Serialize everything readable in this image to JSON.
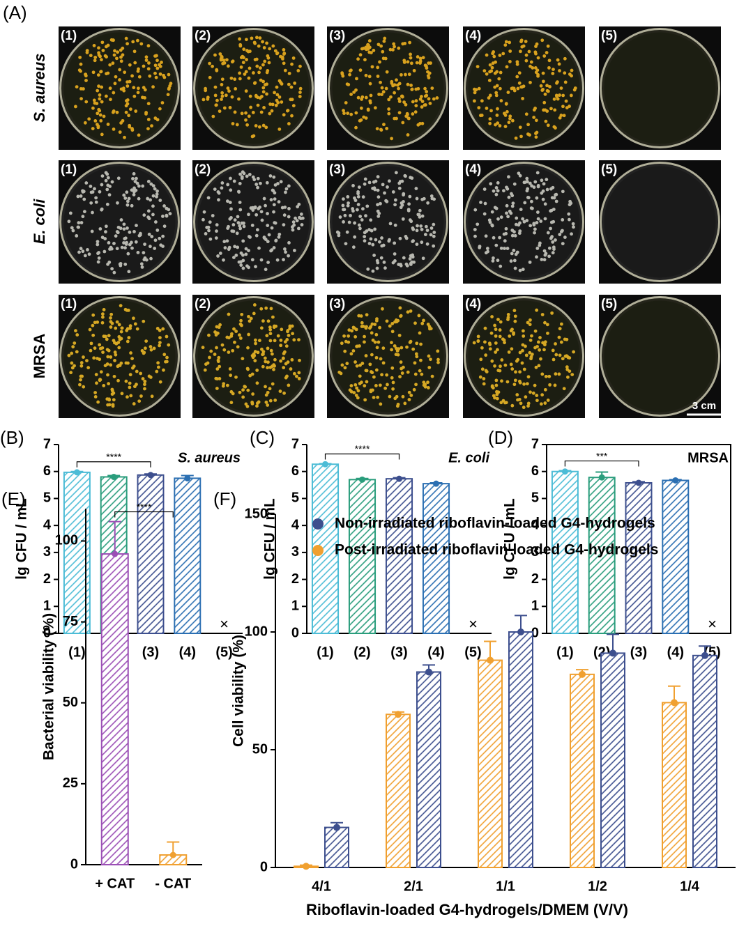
{
  "panel_a": {
    "label": "(A)",
    "scale_bar": "3 cm",
    "rows": [
      {
        "name": "S. aureus",
        "italic": true,
        "colony_color": "#d9a21e",
        "plates": [
          "(1)",
          "(2)",
          "(3)",
          "(4)",
          "(5)"
        ],
        "growth": [
          true,
          true,
          true,
          true,
          false
        ]
      },
      {
        "name": "E. coli",
        "italic": true,
        "colony_color": "#b8b8b0",
        "plates": [
          "(1)",
          "(2)",
          "(3)",
          "(4)",
          "(5)"
        ],
        "growth": [
          true,
          true,
          true,
          true,
          false
        ]
      },
      {
        "name": "MRSA",
        "italic": false,
        "colony_color": "#d6a824",
        "plates": [
          "(1)",
          "(2)",
          "(3)",
          "(4)",
          "(5)"
        ],
        "growth": [
          true,
          true,
          true,
          true,
          false
        ]
      }
    ]
  },
  "chart_data": [
    {
      "type": "bar",
      "panel_label": "(B)",
      "y_label": "lg CFU / mL",
      "species": "S. aureus",
      "species_italic": true,
      "categories": [
        "(1)",
        "(2)",
        "(3)",
        "(4)",
        "(5)"
      ],
      "values": [
        5.97,
        5.8,
        5.87,
        5.75,
        0
      ],
      "errors": [
        0.03,
        0.05,
        0.04,
        0.1,
        0
      ],
      "colors": [
        "#4cbcd6",
        "#2a9d7c",
        "#3d4f8e",
        "#2b6fb2",
        "#2b6fb2"
      ],
      "no_growth_marker": "×",
      "significance": {
        "label": "****",
        "between": [
          "(1)",
          "(3)"
        ]
      },
      "ylim": [
        0,
        7
      ],
      "yticks": [
        0,
        1,
        2,
        3,
        4,
        5,
        6,
        7
      ],
      "frame": false
    },
    {
      "type": "bar",
      "panel_label": "(C)",
      "y_label": "lg CFU / mL",
      "species": "E. coli",
      "species_italic": true,
      "categories": [
        "(1)",
        "(2)",
        "(3)",
        "(4)",
        "(5)"
      ],
      "values": [
        6.27,
        5.7,
        5.73,
        5.55,
        0
      ],
      "errors": [
        0.02,
        0.04,
        0.04,
        0.03,
        0
      ],
      "colors": [
        "#4cbcd6",
        "#2a9d7c",
        "#3d4f8e",
        "#2b6fb2",
        "#2b6fb2"
      ],
      "no_growth_marker": "×",
      "significance": {
        "label": "****",
        "between": [
          "(1)",
          "(3)"
        ]
      },
      "ylim": [
        0,
        7
      ],
      "yticks": [
        0,
        1,
        2,
        3,
        4,
        5,
        6,
        7
      ],
      "frame": false
    },
    {
      "type": "bar",
      "panel_label": "(D)",
      "y_label": "lg CFU / mL",
      "species": "MRSA",
      "species_italic": false,
      "categories": [
        "(1)",
        "(2)",
        "(3)",
        "(4)",
        "(5)"
      ],
      "values": [
        6.0,
        5.78,
        5.58,
        5.67,
        0
      ],
      "errors": [
        0.03,
        0.2,
        0.04,
        0.03,
        0
      ],
      "colors": [
        "#4cbcd6",
        "#2a9d7c",
        "#3d4f8e",
        "#2b6fb2",
        "#2b6fb2"
      ],
      "no_growth_marker": "×",
      "significance": {
        "label": "***",
        "between": [
          "(1)",
          "(3)"
        ]
      },
      "ylim": [
        0,
        7
      ],
      "yticks": [
        0,
        1,
        2,
        3,
        4,
        5,
        6,
        7
      ],
      "frame": true
    },
    {
      "type": "bar",
      "panel_label": "(E)",
      "y_label": "Bacterial viability (%)",
      "categories": [
        "+ CAT",
        "- CAT"
      ],
      "values": [
        96,
        3
      ],
      "errors": [
        10,
        4
      ],
      "colors": [
        "#9b4fb5",
        "#f0a030"
      ],
      "significance": {
        "label": "****",
        "between": [
          "+ CAT",
          "- CAT"
        ]
      },
      "ylim": [
        0,
        110
      ],
      "yticks": [
        0,
        25,
        50,
        75,
        100
      ],
      "frame": false
    },
    {
      "type": "grouped-bar",
      "panel_label": "(F)",
      "y_label": "Cell viability (%)",
      "x_label": "Riboflavin-loaded G4-hydrogels/DMEM (V/V)",
      "categories": [
        "4/1",
        "2/1",
        "1/1",
        "1/2",
        "1/4"
      ],
      "legend": "top-left",
      "series": [
        {
          "name": "Non-irradiated riboflavin-loaded G4-hydrogels",
          "color": "#3d4f8e",
          "values": [
            17,
            83,
            100,
            91,
            90
          ],
          "errors": [
            2,
            3,
            7,
            8,
            4
          ]
        },
        {
          "name": "Post-irradiated riboflavin-loaded G4-hydrogels",
          "color": "#f0a030",
          "values": [
            0.5,
            65,
            88,
            82,
            70
          ],
          "errors": [
            0.5,
            1,
            8,
            2,
            7
          ]
        }
      ],
      "ylim": [
        0,
        150
      ],
      "yticks": [
        0,
        50,
        100,
        150
      ],
      "frame": false
    }
  ]
}
